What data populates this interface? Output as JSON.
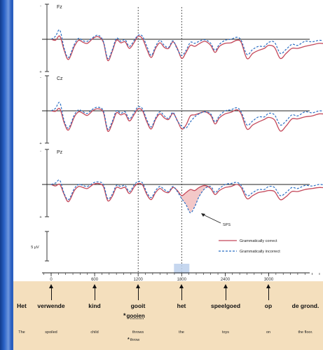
{
  "chart_data": {
    "type": "line",
    "channels": [
      "Fz",
      "Cz",
      "Pz"
    ],
    "polarity_labels": {
      "neg": "-",
      "pos": "+"
    },
    "x_ticks": [
      0,
      600,
      1200,
      1800,
      2400,
      3000
    ],
    "xlim": [
      -100,
      3850
    ],
    "scale_label": "5 μV",
    "legend": [
      "Grammatically correct",
      "Grammatically incorrect"
    ],
    "annotation": "SPS",
    "colors": {
      "correct": "#c4485a",
      "incorrect": "#2b6fc4",
      "effect_fill": "#f2c2c2"
    },
    "series": [
      {
        "name": "Grammatically correct",
        "channel": "Fz",
        "x": [
          0,
          60,
          120,
          180,
          240,
          320,
          380,
          440,
          500,
          580,
          650,
          720,
          780,
          840,
          900,
          960,
          1020,
          1080,
          1150,
          1200,
          1260,
          1320,
          1380,
          1440,
          1500,
          1560,
          1620,
          1680,
          1740,
          1800,
          1860,
          1920,
          1980,
          2040,
          2120,
          2200,
          2260,
          2320,
          2400,
          2480,
          2560,
          2620,
          2700,
          2780,
          2860,
          2940,
          3000,
          3080,
          3160,
          3240,
          3320,
          3400,
          3500,
          3600,
          3700,
          3800
        ],
        "y": [
          0,
          0.2,
          -0.6,
          2.2,
          4.0,
          1.4,
          0.2,
          0.6,
          0.8,
          -0.2,
          -0.5,
          0.6,
          4.2,
          2.5,
          0.2,
          0.7,
          0.5,
          1.8,
          0.5,
          -0.6,
          -0.1,
          2.0,
          3.6,
          1.8,
          0.7,
          1.6,
          1.8,
          0.5,
          1.8,
          3.8,
          2.6,
          1.2,
          1.4,
          0.9,
          0.4,
          1.2,
          2.6,
          1.4,
          0.8,
          0.7,
          0.2,
          0.6,
          3.8,
          2.8,
          2.2,
          1.8,
          1.2,
          1.6,
          3.8,
          2.8,
          1.8,
          1.8,
          1.4,
          1.1,
          0.8,
          0.9
        ]
      },
      {
        "name": "Grammatically incorrect",
        "channel": "Fz",
        "x": [
          0,
          60,
          120,
          180,
          240,
          320,
          380,
          440,
          500,
          580,
          650,
          720,
          780,
          840,
          900,
          960,
          1020,
          1080,
          1150,
          1200,
          1260,
          1320,
          1380,
          1440,
          1500,
          1560,
          1620,
          1680,
          1740,
          1800,
          1860,
          1920,
          1980,
          2040,
          2120,
          2200,
          2260,
          2320,
          2400,
          2480,
          2560,
          2620,
          2700,
          2780,
          2860,
          2940,
          3000,
          3080,
          3160,
          3240,
          3320,
          3400,
          3500,
          3600,
          3700,
          3800
        ],
        "y": [
          0,
          -0.6,
          -1.8,
          1.8,
          3.6,
          1.0,
          -0.2,
          0.3,
          0.4,
          -0.4,
          -0.8,
          0.4,
          3.8,
          2.2,
          -0.2,
          0.4,
          0.1,
          1.4,
          0.1,
          -0.8,
          -0.6,
          1.4,
          3.2,
          1.4,
          0.2,
          1.2,
          1.6,
          0.3,
          2.0,
          3.2,
          2.2,
          0.6,
          0.8,
          0.4,
          0.1,
          0.8,
          2.2,
          1.0,
          0.2,
          0.0,
          -0.4,
          0.2,
          3.0,
          2.0,
          1.4,
          1.4,
          0.6,
          0.6,
          2.8,
          2.0,
          1.0,
          1.2,
          0.4,
          0.5,
          0.2,
          0.4
        ]
      },
      {
        "name": "Grammatically correct",
        "channel": "Cz",
        "x": [
          0,
          60,
          120,
          180,
          240,
          320,
          380,
          440,
          500,
          580,
          650,
          720,
          780,
          840,
          900,
          960,
          1020,
          1080,
          1150,
          1200,
          1260,
          1320,
          1380,
          1440,
          1500,
          1560,
          1620,
          1680,
          1740,
          1800,
          1860,
          1920,
          1980,
          2040,
          2120,
          2200,
          2260,
          2320,
          2400,
          2480,
          2560,
          2620,
          2700,
          2780,
          2860,
          2940,
          3000,
          3080,
          3160,
          3240,
          3320,
          3400,
          3500,
          3600,
          3700,
          3800
        ],
        "y": [
          0,
          0.1,
          -0.4,
          2.4,
          3.8,
          1.2,
          0.2,
          0.5,
          0.9,
          -0.1,
          -0.4,
          0.3,
          4.0,
          2.6,
          0.4,
          0.8,
          0.6,
          2.0,
          0.6,
          -0.4,
          0.0,
          2.2,
          3.6,
          1.7,
          0.6,
          1.4,
          1.7,
          0.5,
          1.9,
          3.6,
          2.8,
          1.0,
          0.8,
          0.5,
          0.2,
          0.9,
          2.6,
          1.4,
          0.6,
          0.3,
          -0.2,
          0.6,
          3.6,
          2.8,
          2.2,
          1.7,
          1.3,
          1.8,
          4.0,
          3.0,
          1.6,
          1.6,
          1.2,
          1.0,
          0.6,
          0.7
        ]
      },
      {
        "name": "Grammatically incorrect",
        "channel": "Cz",
        "x": [
          0,
          60,
          120,
          180,
          240,
          320,
          380,
          440,
          500,
          580,
          650,
          720,
          780,
          840,
          900,
          960,
          1020,
          1080,
          1150,
          1200,
          1260,
          1320,
          1380,
          1440,
          1500,
          1560,
          1620,
          1680,
          1740,
          1800,
          1860,
          1920,
          1980,
          2040,
          2120,
          2200,
          2260,
          2320,
          2400,
          2480,
          2560,
          2620,
          2700,
          2780,
          2860,
          2940,
          3000,
          3080,
          3160,
          3240,
          3320,
          3400,
          3500,
          3600,
          3700,
          3800
        ],
        "y": [
          0,
          -0.5,
          -1.6,
          2.0,
          3.4,
          0.8,
          -0.2,
          0.2,
          0.5,
          -0.4,
          -0.7,
          0.0,
          3.6,
          2.2,
          0.0,
          0.5,
          0.2,
          1.6,
          0.2,
          -0.8,
          -0.4,
          1.8,
          3.2,
          1.4,
          0.2,
          1.0,
          1.5,
          0.3,
          2.0,
          3.0,
          3.4,
          2.2,
          1.2,
          0.6,
          0.2,
          0.6,
          2.2,
          1.0,
          0.0,
          -0.2,
          -0.6,
          0.2,
          2.8,
          2.0,
          1.2,
          1.2,
          0.5,
          0.8,
          2.8,
          2.0,
          0.8,
          1.0,
          0.2,
          0.4,
          0.0,
          0.2
        ]
      },
      {
        "name": "Grammatically correct",
        "channel": "Pz",
        "x": [
          0,
          60,
          120,
          180,
          240,
          320,
          380,
          440,
          500,
          580,
          650,
          720,
          780,
          840,
          900,
          960,
          1020,
          1080,
          1150,
          1200,
          1260,
          1320,
          1380,
          1440,
          1500,
          1560,
          1620,
          1680,
          1740,
          1800,
          1860,
          1920,
          1980,
          2040,
          2120,
          2200,
          2260,
          2320,
          2400,
          2480,
          2560,
          2620,
          2700,
          2780,
          2860,
          2940,
          3000,
          3080,
          3160,
          3240,
          3320,
          3400,
          3500,
          3600,
          3700,
          3800
        ],
        "y": [
          0,
          0.3,
          0.0,
          2.0,
          3.4,
          1.2,
          0.4,
          0.6,
          0.8,
          0.0,
          -0.2,
          0.4,
          3.2,
          2.4,
          0.6,
          0.8,
          0.6,
          1.8,
          0.4,
          -0.2,
          0.1,
          2.0,
          3.0,
          1.6,
          0.8,
          1.4,
          1.6,
          0.6,
          1.2,
          2.2,
          1.6,
          1.0,
          1.2,
          0.6,
          0.2,
          0.8,
          2.0,
          1.2,
          0.6,
          0.4,
          0.0,
          0.6,
          2.8,
          2.2,
          1.6,
          1.4,
          1.2,
          1.4,
          3.0,
          2.4,
          1.4,
          1.4,
          1.0,
          0.8,
          0.6,
          0.7
        ]
      },
      {
        "name": "Grammatically incorrect",
        "channel": "Pz",
        "x": [
          0,
          60,
          120,
          180,
          240,
          320,
          380,
          440,
          500,
          580,
          650,
          720,
          780,
          840,
          900,
          960,
          1020,
          1080,
          1150,
          1200,
          1260,
          1320,
          1380,
          1440,
          1500,
          1560,
          1620,
          1680,
          1740,
          1800,
          1860,
          1920,
          1980,
          2040,
          2120,
          2200,
          2260,
          2320,
          2400,
          2480,
          2560,
          2620,
          2700,
          2780,
          2860,
          2940,
          3000,
          3080,
          3160,
          3240,
          3320,
          3400,
          3500,
          3600,
          3700,
          3800
        ],
        "y": [
          0,
          -0.3,
          -0.8,
          1.8,
          3.0,
          0.8,
          0.0,
          0.2,
          0.4,
          -0.3,
          -0.5,
          0.0,
          2.8,
          2.0,
          0.2,
          0.4,
          0.2,
          1.4,
          0.0,
          -0.6,
          -0.3,
          1.6,
          2.6,
          1.2,
          0.4,
          1.0,
          1.4,
          0.4,
          1.4,
          2.8,
          4.0,
          5.6,
          4.4,
          2.4,
          0.8,
          0.4,
          1.6,
          0.8,
          0.0,
          -0.2,
          -0.4,
          0.2,
          2.2,
          1.6,
          1.0,
          1.0,
          0.4,
          0.6,
          2.2,
          1.6,
          0.6,
          0.8,
          0.2,
          0.3,
          0.0,
          0.2
        ]
      }
    ]
  },
  "sentence": {
    "words": [
      {
        "word": "Het",
        "gloss": "The"
      },
      {
        "word": "verwende",
        "gloss": "spoiled"
      },
      {
        "word": "kind",
        "gloss": "child"
      },
      {
        "word": "gooit",
        "gloss": "throws"
      },
      {
        "word": "het",
        "gloss": "the"
      },
      {
        "word": "speelgoed",
        "gloss": "toys"
      },
      {
        "word": "op",
        "gloss": "on"
      },
      {
        "word": "de grond.",
        "gloss": "the floor."
      }
    ],
    "alternative": {
      "marker": "*",
      "word": "gooien",
      "gloss": "throw"
    }
  }
}
